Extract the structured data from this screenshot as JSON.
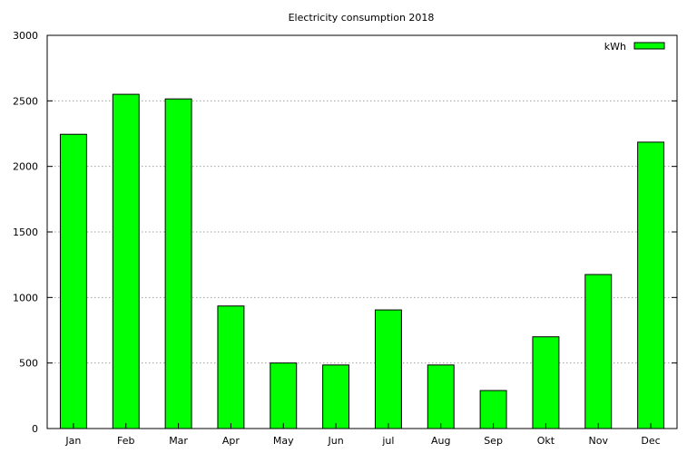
{
  "chart_data": {
    "type": "bar",
    "title": "Electricity consumption 2018",
    "categories": [
      "Jan",
      "Feb",
      "Mar",
      "Apr",
      "May",
      "Jun",
      "jul",
      "Aug",
      "Sep",
      "Okt",
      "Nov",
      "Dec"
    ],
    "series": [
      {
        "name": "kWh",
        "color": "#00ff00",
        "values": [
          2245,
          2550,
          2515,
          935,
          500,
          485,
          905,
          485,
          290,
          700,
          1175,
          2185
        ]
      }
    ],
    "ylim": [
      0,
      3000
    ],
    "yticks": [
      0,
      500,
      1000,
      1500,
      2000,
      2500,
      3000
    ],
    "grid": "horizontal, dotted",
    "legend_position": "top-right"
  }
}
